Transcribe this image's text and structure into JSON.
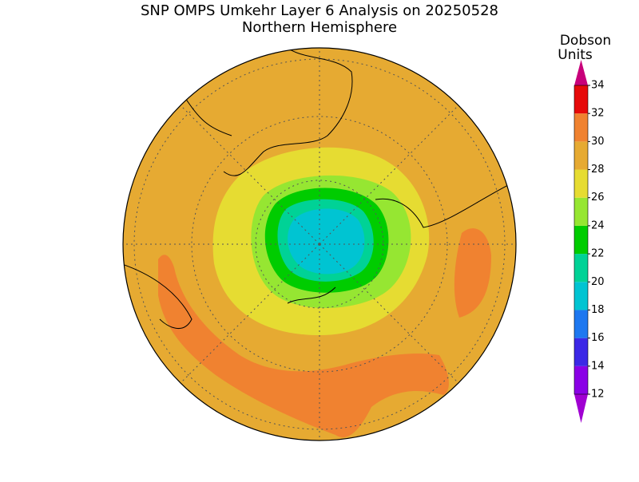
{
  "title": "SNP OMPS Umkehr Layer 6 Analysis on 20250528",
  "subtitle": "Northern Hemisphere",
  "colorbar": {
    "label": [
      "Dobson",
      "Units"
    ],
    "ticks": [
      12,
      14,
      16,
      18,
      20,
      22,
      24,
      26,
      28,
      30,
      32,
      34
    ],
    "colors": [
      "#8a00e6",
      "#3c28e6",
      "#1e78f0",
      "#00c4d2",
      "#00d296",
      "#00cc00",
      "#96e632",
      "#e6dc32",
      "#e6aa32",
      "#f08230",
      "#e60a0a"
    ],
    "under_color": "#a000d2",
    "over_color": "#c8007a"
  }
}
